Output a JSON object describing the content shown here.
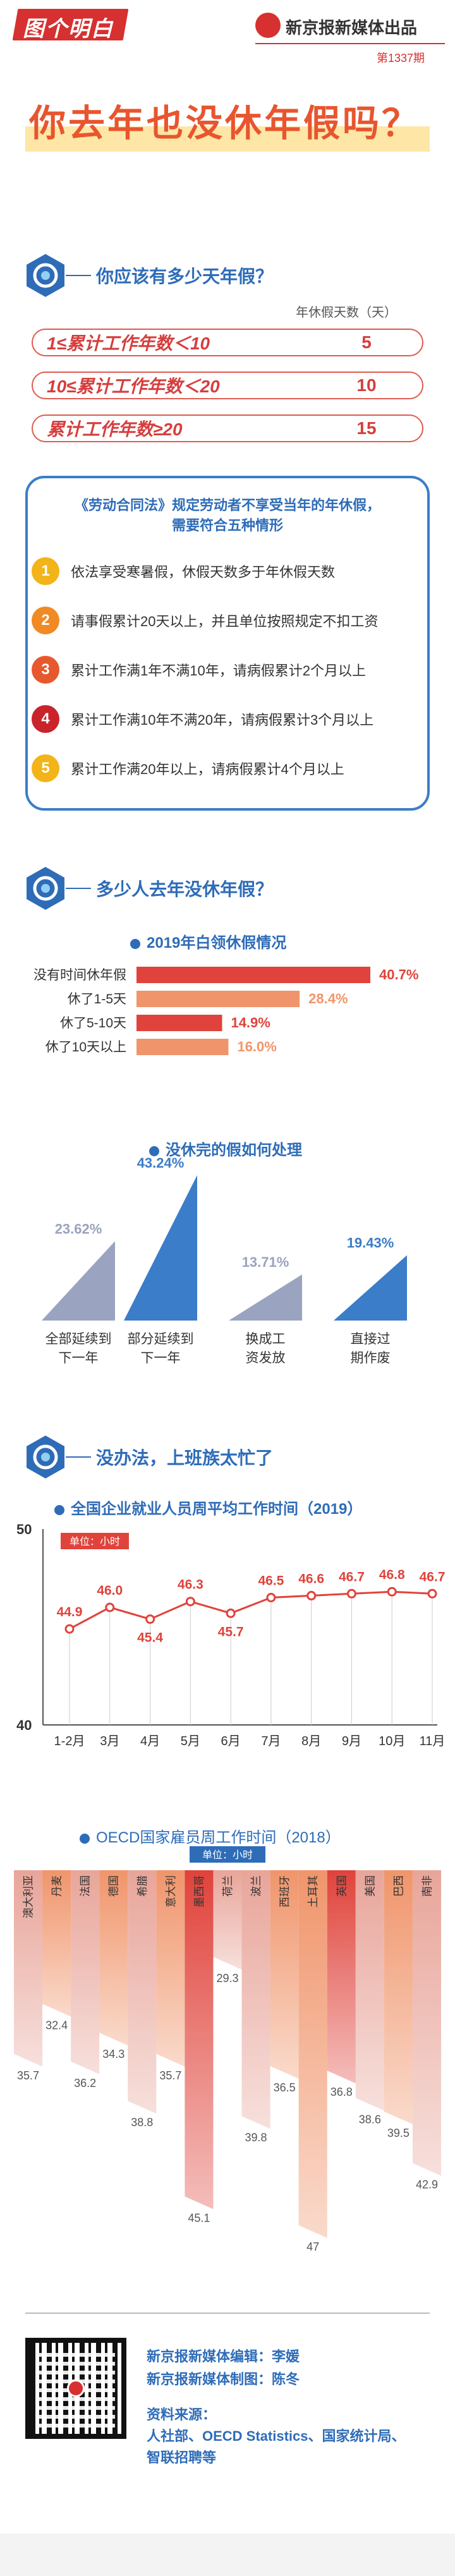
{
  "header": {
    "brand": "图个明白",
    "publisher": "新京报新媒体出品",
    "issue": "第1337期"
  },
  "headline": "你去年也没休年假吗？",
  "section1": {
    "title": "你应该有多少天年假？",
    "col_header": "年休假天数（天）",
    "rows": [
      {
        "label": "1≤累计工作年数＜10",
        "days": "5"
      },
      {
        "label": "10≤累计工作年数＜20",
        "days": "10"
      },
      {
        "label": "累计工作年数≥20",
        "days": "15"
      }
    ],
    "rules_title_1": "《劳动合同法》规定劳动者不享受当年的年休假，",
    "rules_title_2": "需要符合五种情形",
    "conditions": [
      {
        "num": "1",
        "text": "依法享受寒暑假，休假天数多于年休假天数",
        "color": "#f2b418"
      },
      {
        "num": "2",
        "text": "请事假累计20天以上，并且单位按照规定不扣工资",
        "color": "#f08a24"
      },
      {
        "num": "3",
        "text": "累计工作满1年不满10年，请病假累计2个月以上",
        "color": "#e8582e"
      },
      {
        "num": "4",
        "text": "累计工作满10年不满20年，请病假累计3个月以上",
        "color": "#c9232c"
      },
      {
        "num": "5",
        "text": "累计工作满20年以上，请病假累计4个月以上",
        "color": "#f2b418"
      }
    ]
  },
  "section2": {
    "title": "多少人去年没休年假？",
    "sub1": "2019年白领休假情况",
    "sub2": "没休完的假如何处理"
  },
  "section3": {
    "title": "没办法，上班族太忙了",
    "sub1": "全国企业就业人员周平均工作时间（2019）",
    "sub2": "OECD国家雇员周工作时间（2018）",
    "unit_label": "单位：小时"
  },
  "footer": {
    "editor": "新京报新媒体编辑：李媛",
    "designer": "新京报新媒体制图：陈冬",
    "source_1": "资料来源：",
    "source_2": "人社部、OECD Statistics、国家统计局、",
    "source_3": "智联招聘等"
  },
  "colors": {
    "red": "#e0433b",
    "blue": "#2e6cb8",
    "salmon": "#f0956b",
    "gray_blue": "#9aa3bf"
  },
  "chart_data": [
    {
      "type": "bar",
      "orientation": "horizontal",
      "title": "2019年白领休假情况",
      "categories": [
        "没有时间休年假",
        "休了1-5天",
        "休了5-10天",
        "休了10天以上"
      ],
      "values": [
        40.7,
        28.4,
        14.9,
        16.0
      ],
      "value_labels": [
        "40.7%",
        "28.4%",
        "14.9%",
        "16.0%"
      ],
      "colors": [
        "#e0433b",
        "#f0956b",
        "#e0433b",
        "#f0956b"
      ]
    },
    {
      "type": "bar",
      "title": "没休完的假如何处理",
      "categories": [
        "全部延续到下一年",
        "部分延续到下一年",
        "换成工资发放",
        "直接过期作废"
      ],
      "values": [
        23.62,
        43.24,
        13.71,
        19.43
      ],
      "value_labels": [
        "23.62%",
        "43.24%",
        "13.71%",
        "19.43%"
      ],
      "colors": [
        "#9aa3bf",
        "#3b7dc8",
        "#9aa3bf",
        "#3b7dc8"
      ]
    },
    {
      "type": "line",
      "title": "全国企业就业人员周平均工作时间（2019）",
      "categories": [
        "1-2月",
        "3月",
        "4月",
        "5月",
        "6月",
        "7月",
        "8月",
        "9月",
        "10月",
        "11月"
      ],
      "values": [
        44.9,
        46.0,
        45.4,
        46.3,
        45.7,
        46.5,
        46.6,
        46.7,
        46.8,
        46.7
      ],
      "ylim": [
        40,
        50
      ],
      "yticks": [
        "50",
        "40"
      ],
      "unit": "单位：小时"
    },
    {
      "type": "bar",
      "title": "OECD国家雇员周工作时间（2018）",
      "categories": [
        "澳大利亚",
        "丹麦",
        "法国",
        "德国",
        "希腊",
        "意大利",
        "墨西哥",
        "荷兰",
        "波兰",
        "西班牙",
        "土耳其",
        "英国",
        "美国",
        "巴西",
        "南非"
      ],
      "values": [
        35.7,
        32.4,
        36.2,
        34.3,
        38.8,
        35.7,
        45.1,
        29.3,
        39.8,
        36.5,
        47,
        36.8,
        38.6,
        39.5,
        42.9
      ],
      "value_labels": [
        "35.7",
        "32.4",
        "36.2",
        "34.3",
        "38.8",
        "35.7",
        "45.1",
        "29.3",
        "39.8",
        "36.5",
        "47",
        "36.8",
        "38.6",
        "39.5",
        "42.9"
      ],
      "unit": "单位：小时",
      "colors": [
        "#e8a59a",
        "#f0956b",
        "#e8a59a",
        "#f0956b",
        "#e8a59a",
        "#f0956b",
        "#e0433b",
        "#e8a59a",
        "#e8a59a",
        "#f0956b",
        "#f0956b",
        "#e0433b",
        "#e8a59a",
        "#f0956b",
        "#e8a59a"
      ]
    }
  ]
}
